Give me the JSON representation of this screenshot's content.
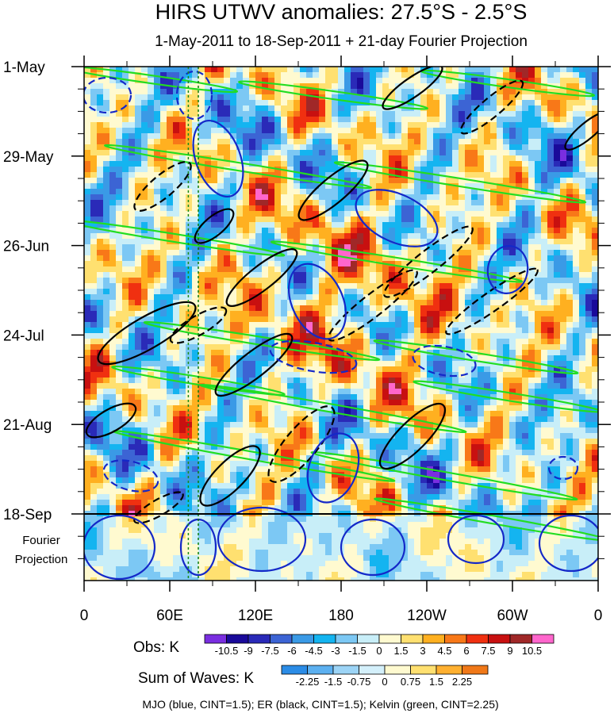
{
  "chart_data": {
    "type": "heatmap",
    "title": "HIRS UTWV anomalies: 27.5°S - 2.5°S",
    "subtitle": "1-May-2011 to 18-Sep-2011 + 21-day Fourier Projection",
    "x_tick_labels": [
      "0",
      "60E",
      "120E",
      "180",
      "120W",
      "60W",
      "0"
    ],
    "x_longitudes_deg_east": [
      0,
      60,
      120,
      180,
      240,
      300,
      360
    ],
    "y_tick_labels": [
      "1-May",
      "29-May",
      "26-Jun",
      "24-Jul",
      "21-Aug",
      "18-Sep"
    ],
    "y_days_since_start": [
      0,
      28,
      56,
      84,
      112,
      140
    ],
    "projection_label_line1": "Fourier",
    "projection_label_line2": "Projection",
    "projection_days": 21,
    "reference_longitudes_deg_east": [
      73,
      80
    ],
    "obs_colorbar": {
      "title": "Obs: K",
      "levels": [
        "-10.5",
        "-9",
        "-7.5",
        "-6",
        "-4.5",
        "-3",
        "-1.5",
        "0",
        "1.5",
        "3",
        "4.5",
        "6",
        "7.5",
        "9",
        "10.5"
      ],
      "colors": [
        "#7a2ee0",
        "#1a0a9a",
        "#2a2ab8",
        "#3c64d4",
        "#3a9ae6",
        "#14b4f0",
        "#7cc8f4",
        "#c8eef8",
        "#fffad0",
        "#ffe070",
        "#ffb020",
        "#f87818",
        "#f03010",
        "#c81010",
        "#a02828",
        "#ff66cc"
      ]
    },
    "waves_colorbar": {
      "title": "Sum of Waves: K",
      "levels": [
        "-2.25",
        "-1.5",
        "-0.75",
        "0",
        "0.75",
        "1.5",
        "2.25"
      ],
      "colors": [
        "#2b8ce6",
        "#5cb0f0",
        "#9cd4f6",
        "#d4f0fb",
        "#fffad0",
        "#ffe070",
        "#ffb030",
        "#f07818"
      ]
    },
    "footer": "MJO (blue, CINT=1.5); ER (black, CINT=1.5); Kelvin (green, CINT=2.25)",
    "contours": [
      {
        "wave": "MJO",
        "color": "#1428c8"
      },
      {
        "wave": "ER",
        "color": "#000000"
      },
      {
        "wave": "Kelvin",
        "color": "#22dd22"
      }
    ]
  }
}
